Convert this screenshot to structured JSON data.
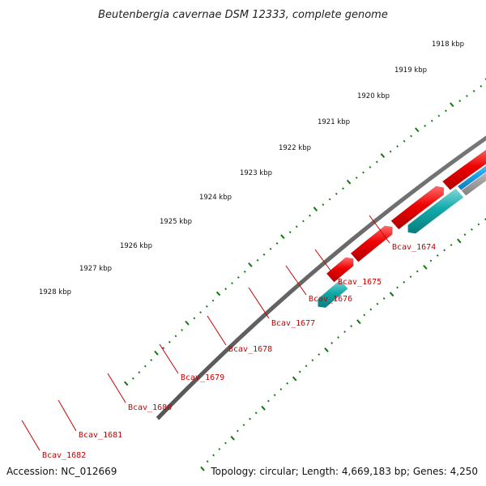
{
  "title": "Beutenbergia cavernae DSM 12333, complete genome",
  "accession": "Accession: NC_012669",
  "summary": "Topology: circular; Length: 4,669,183 bp; Genes: 4,250",
  "ticks": [
    {
      "label": "1918 kbp"
    },
    {
      "label": "1919 kbp"
    },
    {
      "label": "1920 kbp"
    },
    {
      "label": "1921 kbp"
    },
    {
      "label": "1922 kbp"
    },
    {
      "label": "1923 kbp"
    },
    {
      "label": "1924 kbp"
    },
    {
      "label": "1925 kbp"
    },
    {
      "label": "1926 kbp"
    },
    {
      "label": "1927 kbp"
    },
    {
      "label": "1928 kbp"
    }
  ],
  "gene_labels": [
    "Bcav_1674",
    "Bcav_1675",
    "Bcav_1676",
    "Bcav_1677",
    "Bcav_1678",
    "Bcav_1679",
    "Bcav_1680",
    "Bcav_1681",
    "Bcav_1682"
  ],
  "colors": {
    "cds_forward": "#ee0000",
    "cds_reverse_cyan": "#00e6e6",
    "cds_reverse_teal": "#11aaaa",
    "blue": "#0000ee",
    "orange": "#f08a00",
    "light_blue": "#1aa8ee",
    "grey_feature": "#aaaaaa",
    "backbone": "#777777",
    "tick_green": "#117711",
    "label_red": "#cc0000"
  }
}
